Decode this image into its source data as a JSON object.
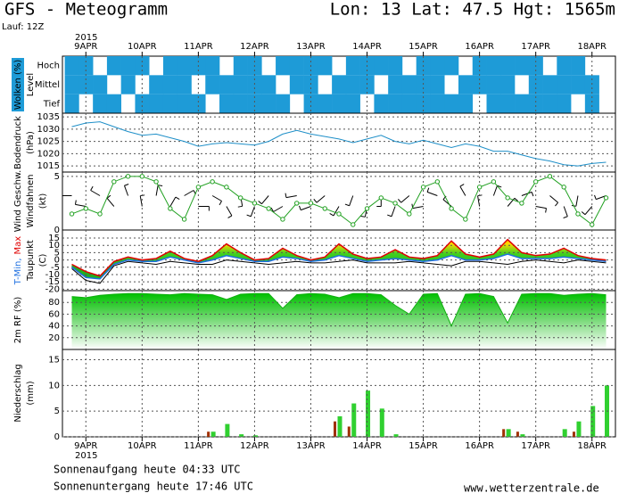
{
  "chart_data": {
    "type": "meteogram",
    "title": "GFS - Meteogramm",
    "subtitle": "Lon: 13 Lat: 47.5 Hgt: 1565m",
    "run": "Lauf: 12Z",
    "year": "2015",
    "x": [
      -6,
      0,
      6,
      12,
      18,
      24,
      30,
      36,
      42,
      48,
      54,
      60,
      66,
      72,
      78,
      84,
      90,
      96,
      102,
      108,
      114,
      120,
      126,
      132,
      138,
      144,
      150,
      156,
      162,
      168,
      174,
      180,
      186,
      192,
      198,
      204,
      210,
      216,
      222
    ],
    "xlim": [
      -10,
      226
    ],
    "xticks": [
      {
        "value": 0,
        "label": "9APR"
      },
      {
        "value": 24,
        "label": "10APR"
      },
      {
        "value": 48,
        "label": "11APR"
      },
      {
        "value": 72,
        "label": "12APR"
      },
      {
        "value": 96,
        "label": "13APR"
      },
      {
        "value": 120,
        "label": "14APR"
      },
      {
        "value": 144,
        "label": "15APR"
      },
      {
        "value": 168,
        "label": "16APR"
      },
      {
        "value": 192,
        "label": "17APR"
      },
      {
        "value": 216,
        "label": "18APR"
      }
    ],
    "panels": [
      {
        "type": "cloud",
        "ylabel": [
          {
            "text": "Wolken (%)",
            "color": "#ffffff",
            "background": "#1e9bd7"
          },
          {
            "text": "Level",
            "color": "#000000"
          }
        ],
        "categories": [
          "Hoch",
          "Mittel",
          "Tief"
        ],
        "color": "#1e9bd7",
        "series": [
          {
            "name": "Hoch",
            "values": [
              100,
              100,
              0,
              100,
              100,
              100,
              0,
              100,
              100,
              100,
              100,
              0,
              100,
              100,
              0,
              100,
              100,
              100,
              100,
              0,
              100,
              100,
              100,
              100,
              0,
              100,
              100,
              100,
              0,
              100,
              100,
              100,
              100,
              100,
              0,
              100,
              100,
              0,
              0
            ]
          },
          {
            "name": "Mittel",
            "values": [
              100,
              100,
              100,
              0,
              100,
              0,
              100,
              100,
              100,
              0,
              100,
              100,
              100,
              100,
              100,
              0,
              100,
              100,
              0,
              100,
              100,
              100,
              0,
              100,
              100,
              100,
              100,
              0,
              100,
              100,
              100,
              100,
              0,
              100,
              100,
              100,
              100,
              100,
              0
            ]
          },
          {
            "name": "Tief",
            "values": [
              100,
              0,
              100,
              100,
              0,
              100,
              100,
              100,
              100,
              100,
              0,
              100,
              100,
              100,
              100,
              100,
              0,
              100,
              100,
              100,
              100,
              0,
              100,
              100,
              100,
              100,
              100,
              100,
              100,
              0,
              100,
              100,
              100,
              100,
              100,
              100,
              0,
              100,
              0
            ]
          }
        ]
      },
      {
        "type": "line",
        "ylabel": [
          {
            "text": "Bodendruck",
            "color": "#000000"
          },
          {
            "text": "(hPa)",
            "color": "#000000"
          }
        ],
        "ylim": [
          1012.5,
          1036.5
        ],
        "yticks": [
          1015,
          1020,
          1025,
          1030,
          1035
        ],
        "series": [
          {
            "color": "#1e8fc8",
            "values": [
              1031,
              1032.5,
              1033,
              1031,
              1029,
              1027.5,
              1028,
              1026.5,
              1025,
              1023,
              1024,
              1024.5,
              1024,
              1023.5,
              1025,
              1028,
              1029.5,
              1028,
              1027,
              1026,
              1024.5,
              1026,
              1027.5,
              1025,
              1024,
              1025.5,
              1024,
              1022.5,
              1024,
              1023,
              1021,
              1021,
              1019.5,
              1018,
              1017,
              1015.5,
              1015,
              1016,
              1016.5
            ]
          }
        ]
      },
      {
        "type": "wind",
        "ylabel": [
          {
            "text": "Wind Geschw.",
            "color": "#20a020"
          },
          {
            "text": "Windfahnen",
            "color": "#000000"
          },
          {
            "text": "(kt)",
            "color": "#000000"
          }
        ],
        "ylim": [
          0,
          5.4
        ],
        "yticks": [
          0,
          5
        ],
        "series": [
          {
            "color": "#20a020",
            "values": [
              1.5,
              2,
              1.5,
              4.5,
              5,
              5,
              4.5,
              2,
              1,
              4,
              4.5,
              4,
              3,
              2.5,
              2,
              1,
              2.5,
              2.5,
              2,
              1.5,
              0.5,
              2,
              3,
              2.5,
              1.5,
              4,
              4.5,
              2,
              1,
              4,
              4.5,
              3,
              2.5,
              4.5,
              5,
              4,
              1.5,
              0.5,
              3
            ]
          }
        ],
        "direction": [
          270,
          280,
          300,
          320,
          340,
          350,
          10,
          30,
          60,
          90,
          120,
          150,
          170,
          200,
          220,
          240,
          260,
          250,
          230,
          210,
          200,
          190,
          180,
          200,
          230,
          260,
          290,
          310,
          330,
          350,
          20,
          40,
          70,
          100,
          130,
          160,
          190,
          220,
          250
        ]
      },
      {
        "type": "temperature",
        "ylabel": [
          {
            "parts": [
              {
                "text": "T-Min,",
                "color": "#1e6fe0"
              },
              {
                "text": "Max",
                "color": "#e00000"
              }
            ]
          },
          {
            "text": "Taupunkt",
            "color": "#000000"
          },
          {
            "text": "(C)",
            "color": "#000000"
          }
        ],
        "ylim": [
          -21,
          20.5
        ],
        "yticks": [
          15,
          10,
          5,
          0,
          -5,
          -10,
          -15,
          -20
        ],
        "series": [
          {
            "name": "T-Min",
            "color": "#1e6fe0",
            "values": [
              -5,
              -12,
              -13,
              -3,
              0,
              -1,
              -1,
              2,
              0,
              -2,
              0,
              3,
              1,
              -1,
              -1,
              2,
              1,
              -1,
              0,
              3,
              1,
              -1,
              0,
              1,
              0,
              -1,
              0,
              3,
              0,
              0,
              1,
              4,
              1,
              1,
              1,
              2,
              1,
              0,
              -1
            ]
          },
          {
            "name": "Max",
            "color": "#e00000",
            "values": [
              -3,
              -8,
              -11,
              -1,
              2,
              0,
              1,
              6,
              1,
              -1,
              3,
              11,
              5,
              0,
              1,
              8,
              3,
              0,
              2,
              11,
              4,
              1,
              2,
              7,
              2,
              1,
              3,
              13,
              4,
              2,
              4,
              14,
              5,
              3,
              4,
              8,
              3,
              1,
              0
            ]
          },
          {
            "name": "Taupunkt",
            "color": "#000000",
            "values": [
              -6,
              -14,
              -16,
              -4,
              -1,
              -2,
              -3,
              -1,
              -2,
              -3,
              -3,
              0,
              -1,
              -2,
              -3,
              -2,
              -1,
              -2,
              -2,
              -1,
              0,
              -2,
              -2,
              -2,
              -1,
              -2,
              -3,
              -4,
              -1,
              -1,
              -2,
              -3,
              -1,
              0,
              -1,
              -2,
              0,
              -1,
              -2
            ]
          }
        ]
      },
      {
        "type": "area",
        "ylabel": [
          {
            "text": "2m RF (%)",
            "color": "#20a020"
          }
        ],
        "ylim": [
          0,
          100
        ],
        "yticks": [
          20,
          40,
          60,
          80
        ],
        "series": [
          {
            "color": "#10b010",
            "values": [
              90,
              88,
              92,
              94,
              95,
              95,
              94,
              93,
              95,
              94,
              93,
              85,
              94,
              95,
              95,
              70,
              93,
              95,
              94,
              88,
              95,
              95,
              93,
              75,
              60,
              94,
              95,
              40,
              94,
              95,
              90,
              45,
              94,
              95,
              95,
              92,
              94,
              95,
              93
            ]
          }
        ]
      },
      {
        "type": "bar",
        "ylabel": [
          {
            "text": "Niederschlag",
            "color": "#000000"
          },
          {
            "text": "(mm)",
            "color": "#000000"
          }
        ],
        "ylim": [
          0,
          17
        ],
        "yticks": [
          0,
          5,
          10,
          15
        ],
        "series": [
          {
            "color": "#30d030",
            "values": [
              0,
              0,
              0,
              0,
              0,
              0,
              0,
              0,
              0,
              0,
              1,
              2.5,
              0.5,
              0.3,
              0,
              0,
              0,
              0,
              0,
              4,
              6.5,
              9,
              5.5,
              0.5,
              0,
              0,
              0,
              0,
              0,
              0,
              0,
              1.5,
              0.5,
              0,
              0,
              1.5,
              3,
              6,
              10
            ]
          },
          {
            "color": "#a03000",
            "values": [
              0,
              0,
              0,
              0,
              0,
              0,
              0,
              0,
              0,
              0,
              1,
              0,
              0,
              0,
              0,
              0,
              0,
              0,
              0,
              3,
              2,
              0,
              0,
              0,
              0,
              0,
              0,
              0,
              0,
              0,
              0,
              1.5,
              1,
              0,
              0,
              0,
              1,
              0,
              0
            ]
          }
        ]
      }
    ],
    "footer": [
      "Sonnenaufgang heute 04:33 UTC",
      "Sonnenuntergang heute 17:46 UTC"
    ],
    "source": "www.wetterzentrale.de"
  }
}
